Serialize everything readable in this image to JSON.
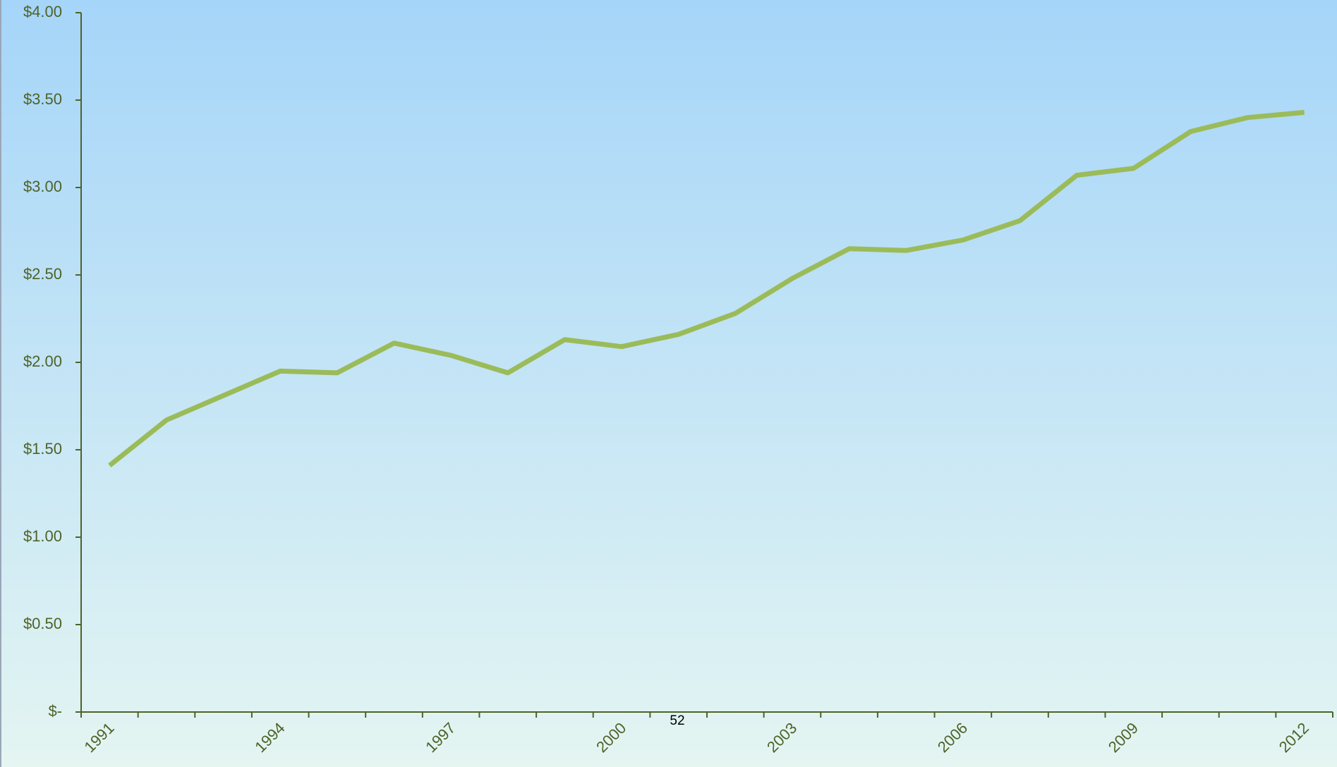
{
  "chart_data": {
    "type": "line",
    "categories": [
      "1991",
      null,
      null,
      "1994",
      null,
      null,
      "1997",
      null,
      null,
      "2000",
      null,
      null,
      "2003",
      null,
      null,
      "2006",
      null,
      null,
      "2009",
      null,
      null,
      "2012"
    ],
    "series": [
      {
        "color": "#9bbb59",
        "values": [
          1.41,
          1.67,
          1.81,
          1.95,
          1.94,
          2.11,
          2.04,
          1.94,
          2.13,
          2.09,
          2.16,
          2.28,
          2.48,
          2.65,
          2.64,
          2.7,
          2.81,
          3.07,
          3.11,
          3.32,
          3.4,
          3.43
        ]
      }
    ],
    "ylim": [
      0,
      4
    ],
    "yticks": [
      {
        "value": 0,
        "label": "$-"
      },
      {
        "value": 0.5,
        "label": "$0.50"
      },
      {
        "value": 1,
        "label": "$1.00"
      },
      {
        "value": 1.5,
        "label": "$1.50"
      },
      {
        "value": 2,
        "label": "$2.00"
      },
      {
        "value": 2.5,
        "label": "$2.50"
      },
      {
        "value": 3,
        "label": "$3.00"
      },
      {
        "value": 3.5,
        "label": "$3.50"
      },
      {
        "value": 4,
        "label": "$4.00"
      }
    ],
    "grid": false
  },
  "footer": {
    "page_number": "52"
  }
}
